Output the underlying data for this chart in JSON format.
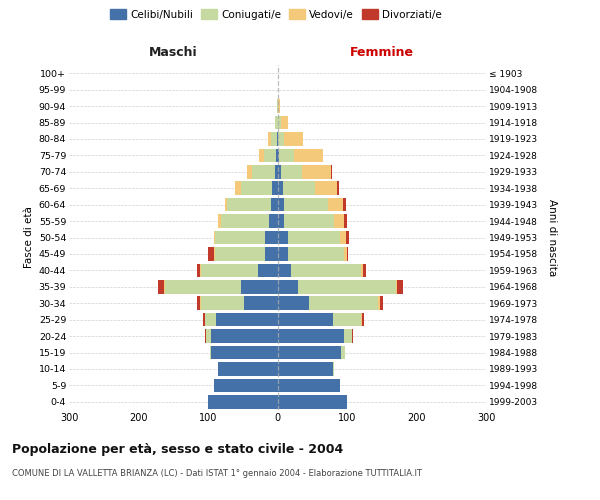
{
  "age_groups": [
    "0-4",
    "5-9",
    "10-14",
    "15-19",
    "20-24",
    "25-29",
    "30-34",
    "35-39",
    "40-44",
    "45-49",
    "50-54",
    "55-59",
    "60-64",
    "65-69",
    "70-74",
    "75-79",
    "80-84",
    "85-89",
    "90-94",
    "95-99",
    "100+"
  ],
  "birth_years": [
    "1999-2003",
    "1994-1998",
    "1989-1993",
    "1984-1988",
    "1979-1983",
    "1974-1978",
    "1969-1973",
    "1964-1968",
    "1959-1963",
    "1954-1958",
    "1949-1953",
    "1944-1948",
    "1939-1943",
    "1934-1938",
    "1929-1933",
    "1924-1928",
    "1919-1923",
    "1914-1918",
    "1909-1913",
    "1904-1908",
    "≤ 1903"
  ],
  "males_celibi": [
    100,
    92,
    85,
    95,
    95,
    88,
    48,
    52,
    28,
    18,
    18,
    12,
    10,
    8,
    4,
    2,
    1,
    0,
    0,
    0,
    0
  ],
  "males_coniugati": [
    0,
    0,
    0,
    2,
    8,
    16,
    62,
    110,
    82,
    72,
    72,
    70,
    62,
    45,
    32,
    18,
    8,
    3,
    1,
    0,
    0
  ],
  "males_vedovi": [
    0,
    0,
    0,
    0,
    0,
    1,
    1,
    2,
    2,
    2,
    2,
    3,
    4,
    8,
    8,
    6,
    4,
    1,
    0,
    0,
    0
  ],
  "males_divorziati": [
    0,
    0,
    0,
    0,
    1,
    2,
    5,
    8,
    4,
    8,
    0,
    0,
    0,
    0,
    0,
    0,
    0,
    0,
    0,
    0,
    0
  ],
  "females_nubili": [
    100,
    90,
    80,
    92,
    95,
    80,
    45,
    30,
    20,
    15,
    15,
    10,
    10,
    8,
    5,
    2,
    1,
    1,
    0,
    0,
    0
  ],
  "females_coniugate": [
    0,
    0,
    2,
    5,
    12,
    40,
    100,
    140,
    100,
    80,
    75,
    72,
    62,
    46,
    30,
    22,
    8,
    4,
    1,
    0,
    0
  ],
  "females_vedove": [
    0,
    0,
    0,
    0,
    0,
    1,
    2,
    2,
    3,
    5,
    8,
    14,
    22,
    32,
    42,
    42,
    28,
    10,
    3,
    0,
    0
  ],
  "females_divorziate": [
    0,
    0,
    0,
    0,
    1,
    4,
    5,
    8,
    4,
    2,
    5,
    4,
    4,
    2,
    2,
    0,
    0,
    0,
    0,
    0,
    0
  ],
  "color_celibi": "#4472a8",
  "color_coniugati": "#c5d9a0",
  "color_vedovi": "#f5c97a",
  "color_divorziati": "#c0392b",
  "xlim": 300,
  "title": "Popolazione per età, sesso e stato civile - 2004",
  "subtitle": "COMUNE DI LA VALLETTA BRIANZA (LC) - Dati ISTAT 1° gennaio 2004 - Elaborazione TUTTITALIA.IT",
  "ylabel_left": "Fasce di età",
  "ylabel_right": "Anni di nascita",
  "label_maschi": "Maschi",
  "label_femmine": "Femmine",
  "legend_labels": [
    "Celibi/Nubili",
    "Coniugati/e",
    "Vedovi/e",
    "Divorziati/e"
  ],
  "bg_color": "#ffffff",
  "grid_color": "#cccccc",
  "femmine_color": "#cc0000"
}
